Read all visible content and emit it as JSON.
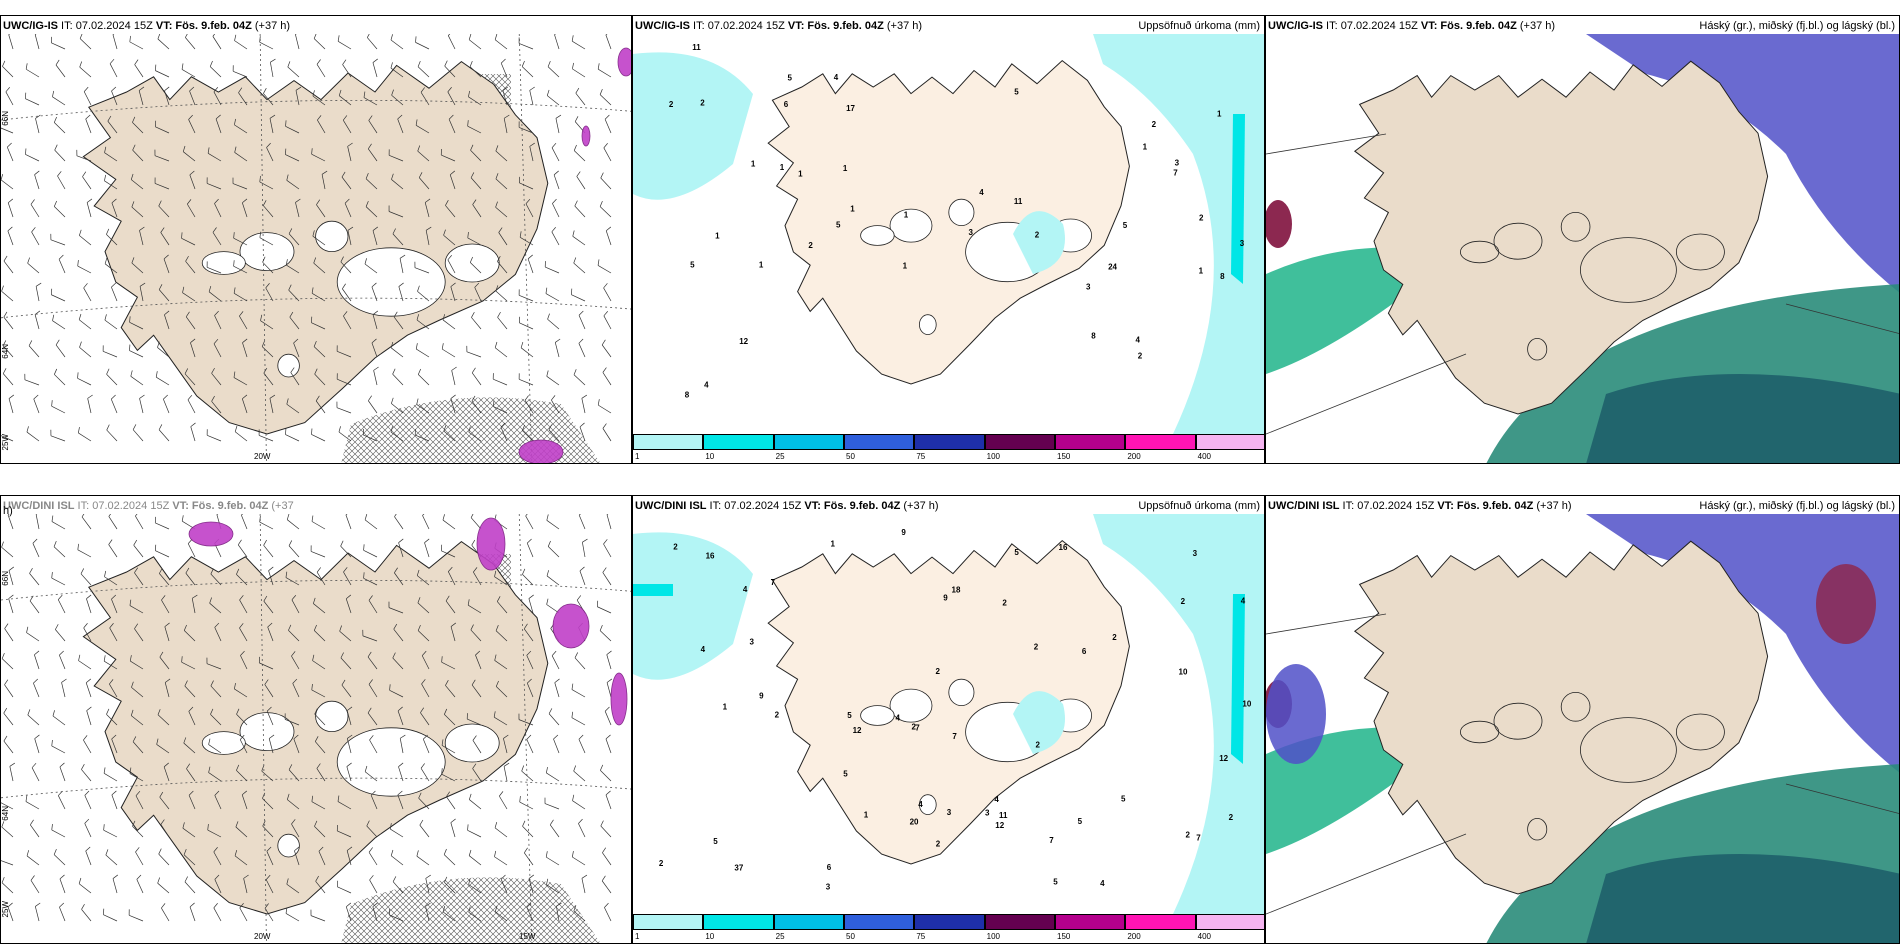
{
  "panels": [
    {
      "id": "p1",
      "model": "UWC/IG-IS",
      "it": " IT: 07.02.2024 15Z ",
      "vt": "VT: Fös. 9.feb. 04Z",
      "lead": " (+37 h)",
      "right": "",
      "kind": "wind"
    },
    {
      "id": "p2",
      "model": "UWC/IG-IS",
      "it": " IT: 07.02.2024 15Z ",
      "vt": "VT: Fös. 9.feb. 04Z",
      "lead": " (+37 h)",
      "right": "Uppsöfnuð úrkoma (mm)",
      "kind": "precip"
    },
    {
      "id": "p3",
      "model": "UWC/IG-IS",
      "it": " IT: 07.02.2024 15Z ",
      "vt": "VT: Fös. 9.feb. 04Z",
      "lead": " (+37 h)",
      "right": "Háský (gr.), miðský (fj.bl.) og lágský (bl.)",
      "kind": "cloud"
    },
    {
      "id": "p4",
      "model": "UWC/DINI ISL",
      "it": " IT: 07.02.2024 15Z ",
      "vt": "VT: Fös. 9.feb. 04Z",
      "lead": " (+37",
      "right": "",
      "kind": "wind",
      "wrap": "h)"
    },
    {
      "id": "p5",
      "model": "UWC/DINI ISL",
      "it": " IT: 07.02.2024 15Z ",
      "vt": "VT: Fös. 9.feb. 04Z",
      "lead": " (+37 h)",
      "right": "Uppsöfnuð úrkoma (mm)",
      "kind": "precip"
    },
    {
      "id": "p6",
      "model": "UWC/DINI ISL",
      "it": " IT: 07.02.2024 15Z ",
      "vt": "VT: Fös. 9.feb. 04Z",
      "lead": " (+37 h)",
      "right": "Háský (gr.), miðský (fj.bl.) og lágský (bl.)",
      "kind": "cloud"
    }
  ],
  "colorbar": {
    "labels": [
      "1",
      "10",
      "25",
      "50",
      "75",
      "100",
      "150",
      "200",
      "400"
    ],
    "colors": [
      "#b3f5f5",
      "#00e6e6",
      "#00bfe6",
      "#2f5fdc",
      "#1e2faa",
      "#640050",
      "#b4008c",
      "#ff14b4",
      "#f5b4f0"
    ]
  },
  "axes": {
    "lat_66": "66N",
    "lat_64": "64N",
    "lon_25": "25W",
    "lon_20": "20W",
    "lon_15": "15W"
  },
  "precip_labels_top": [
    "1",
    "1",
    "1",
    "1",
    "4",
    "2",
    "2",
    "7",
    "4",
    "5",
    "3",
    "3",
    "2",
    "2",
    "2",
    "5",
    "12",
    "5",
    "4",
    "24",
    "8",
    "8",
    "8",
    "5",
    "11",
    "17",
    "11",
    "2",
    "1",
    "1",
    "1",
    "1",
    "1",
    "1",
    "1",
    "2",
    "3",
    "3",
    "1",
    "4",
    "6",
    "5"
  ],
  "precip_labels_bottom": [
    "5",
    "7",
    "6",
    "7",
    "9",
    "2",
    "2",
    "4",
    "5",
    "5",
    "6",
    "4",
    "2",
    "7",
    "7",
    "9",
    "5",
    "16",
    "3",
    "4",
    "37",
    "9",
    "2",
    "1",
    "1",
    "4",
    "5",
    "5",
    "16",
    "20",
    "10",
    "18",
    "12",
    "12",
    "12",
    "11",
    "10",
    "2",
    "2",
    "2",
    "2",
    "2",
    "3",
    "4",
    "4",
    "2",
    "1",
    "2",
    "2",
    "2",
    "3",
    "3",
    "3",
    "4",
    "5",
    "7"
  ]
}
